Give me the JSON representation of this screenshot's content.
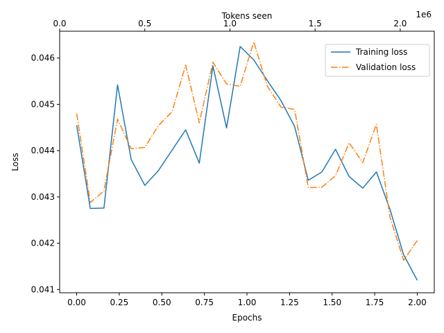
{
  "chart_data": {
    "type": "line",
    "xlabel": "Epochs",
    "ylabel": "Loss",
    "top_xlabel": "Tokens seen",
    "top_x_scale_note": "1e6",
    "xlim": [
      -0.1,
      2.1
    ],
    "ylim": [
      0.04093,
      0.04658
    ],
    "top_xlim": [
      -0.0,
      2.2
    ],
    "x_ticks": [
      0.0,
      0.25,
      0.5,
      0.75,
      1.0,
      1.25,
      1.5,
      1.75,
      2.0
    ],
    "x_tick_labels": [
      "0.00",
      "0.25",
      "0.50",
      "0.75",
      "1.00",
      "1.25",
      "1.50",
      "1.75",
      "2.00"
    ],
    "y_ticks": [
      0.041,
      0.042,
      0.043,
      0.044,
      0.045,
      0.046
    ],
    "y_tick_labels": [
      "0.041",
      "0.042",
      "0.043",
      "0.044",
      "0.045",
      "0.046"
    ],
    "top_x_ticks": [
      0.0,
      0.5,
      1.0,
      1.5,
      2.0
    ],
    "top_x_tick_labels": [
      "0.0",
      "0.5",
      "1.0",
      "1.5",
      "2.0"
    ],
    "grid": false,
    "legend_position": "top-right",
    "x": [
      0.0,
      0.08,
      0.16,
      0.24,
      0.32,
      0.4,
      0.48,
      0.56,
      0.64,
      0.72,
      0.8,
      0.88,
      0.96,
      1.04,
      1.12,
      1.2,
      1.28,
      1.36,
      1.44,
      1.52,
      1.6,
      1.68,
      1.76,
      1.84,
      1.92,
      2.0
    ],
    "series": [
      {
        "name": "Training loss",
        "color": "#1f77b4",
        "dash": "solid",
        "values": [
          0.04455,
          0.04275,
          0.04276,
          0.04542,
          0.04381,
          0.04325,
          0.04357,
          0.04401,
          0.04445,
          0.04373,
          0.04583,
          0.04449,
          0.04625,
          0.04596,
          0.04551,
          0.04508,
          0.04452,
          0.04336,
          0.04354,
          0.04403,
          0.04344,
          0.04319,
          0.04354,
          0.04273,
          0.04175,
          0.0412
        ]
      },
      {
        "name": "Validation loss",
        "color": "#ff7f0e",
        "dash": "dashdot",
        "values": [
          0.0448,
          0.04288,
          0.04313,
          0.04468,
          0.04404,
          0.04407,
          0.04454,
          0.04484,
          0.04585,
          0.0446,
          0.04591,
          0.04544,
          0.04539,
          0.04635,
          0.04539,
          0.04494,
          0.04489,
          0.0432,
          0.04321,
          0.04346,
          0.04417,
          0.04374,
          0.04457,
          0.04256,
          0.04163,
          0.04206
        ]
      }
    ]
  }
}
